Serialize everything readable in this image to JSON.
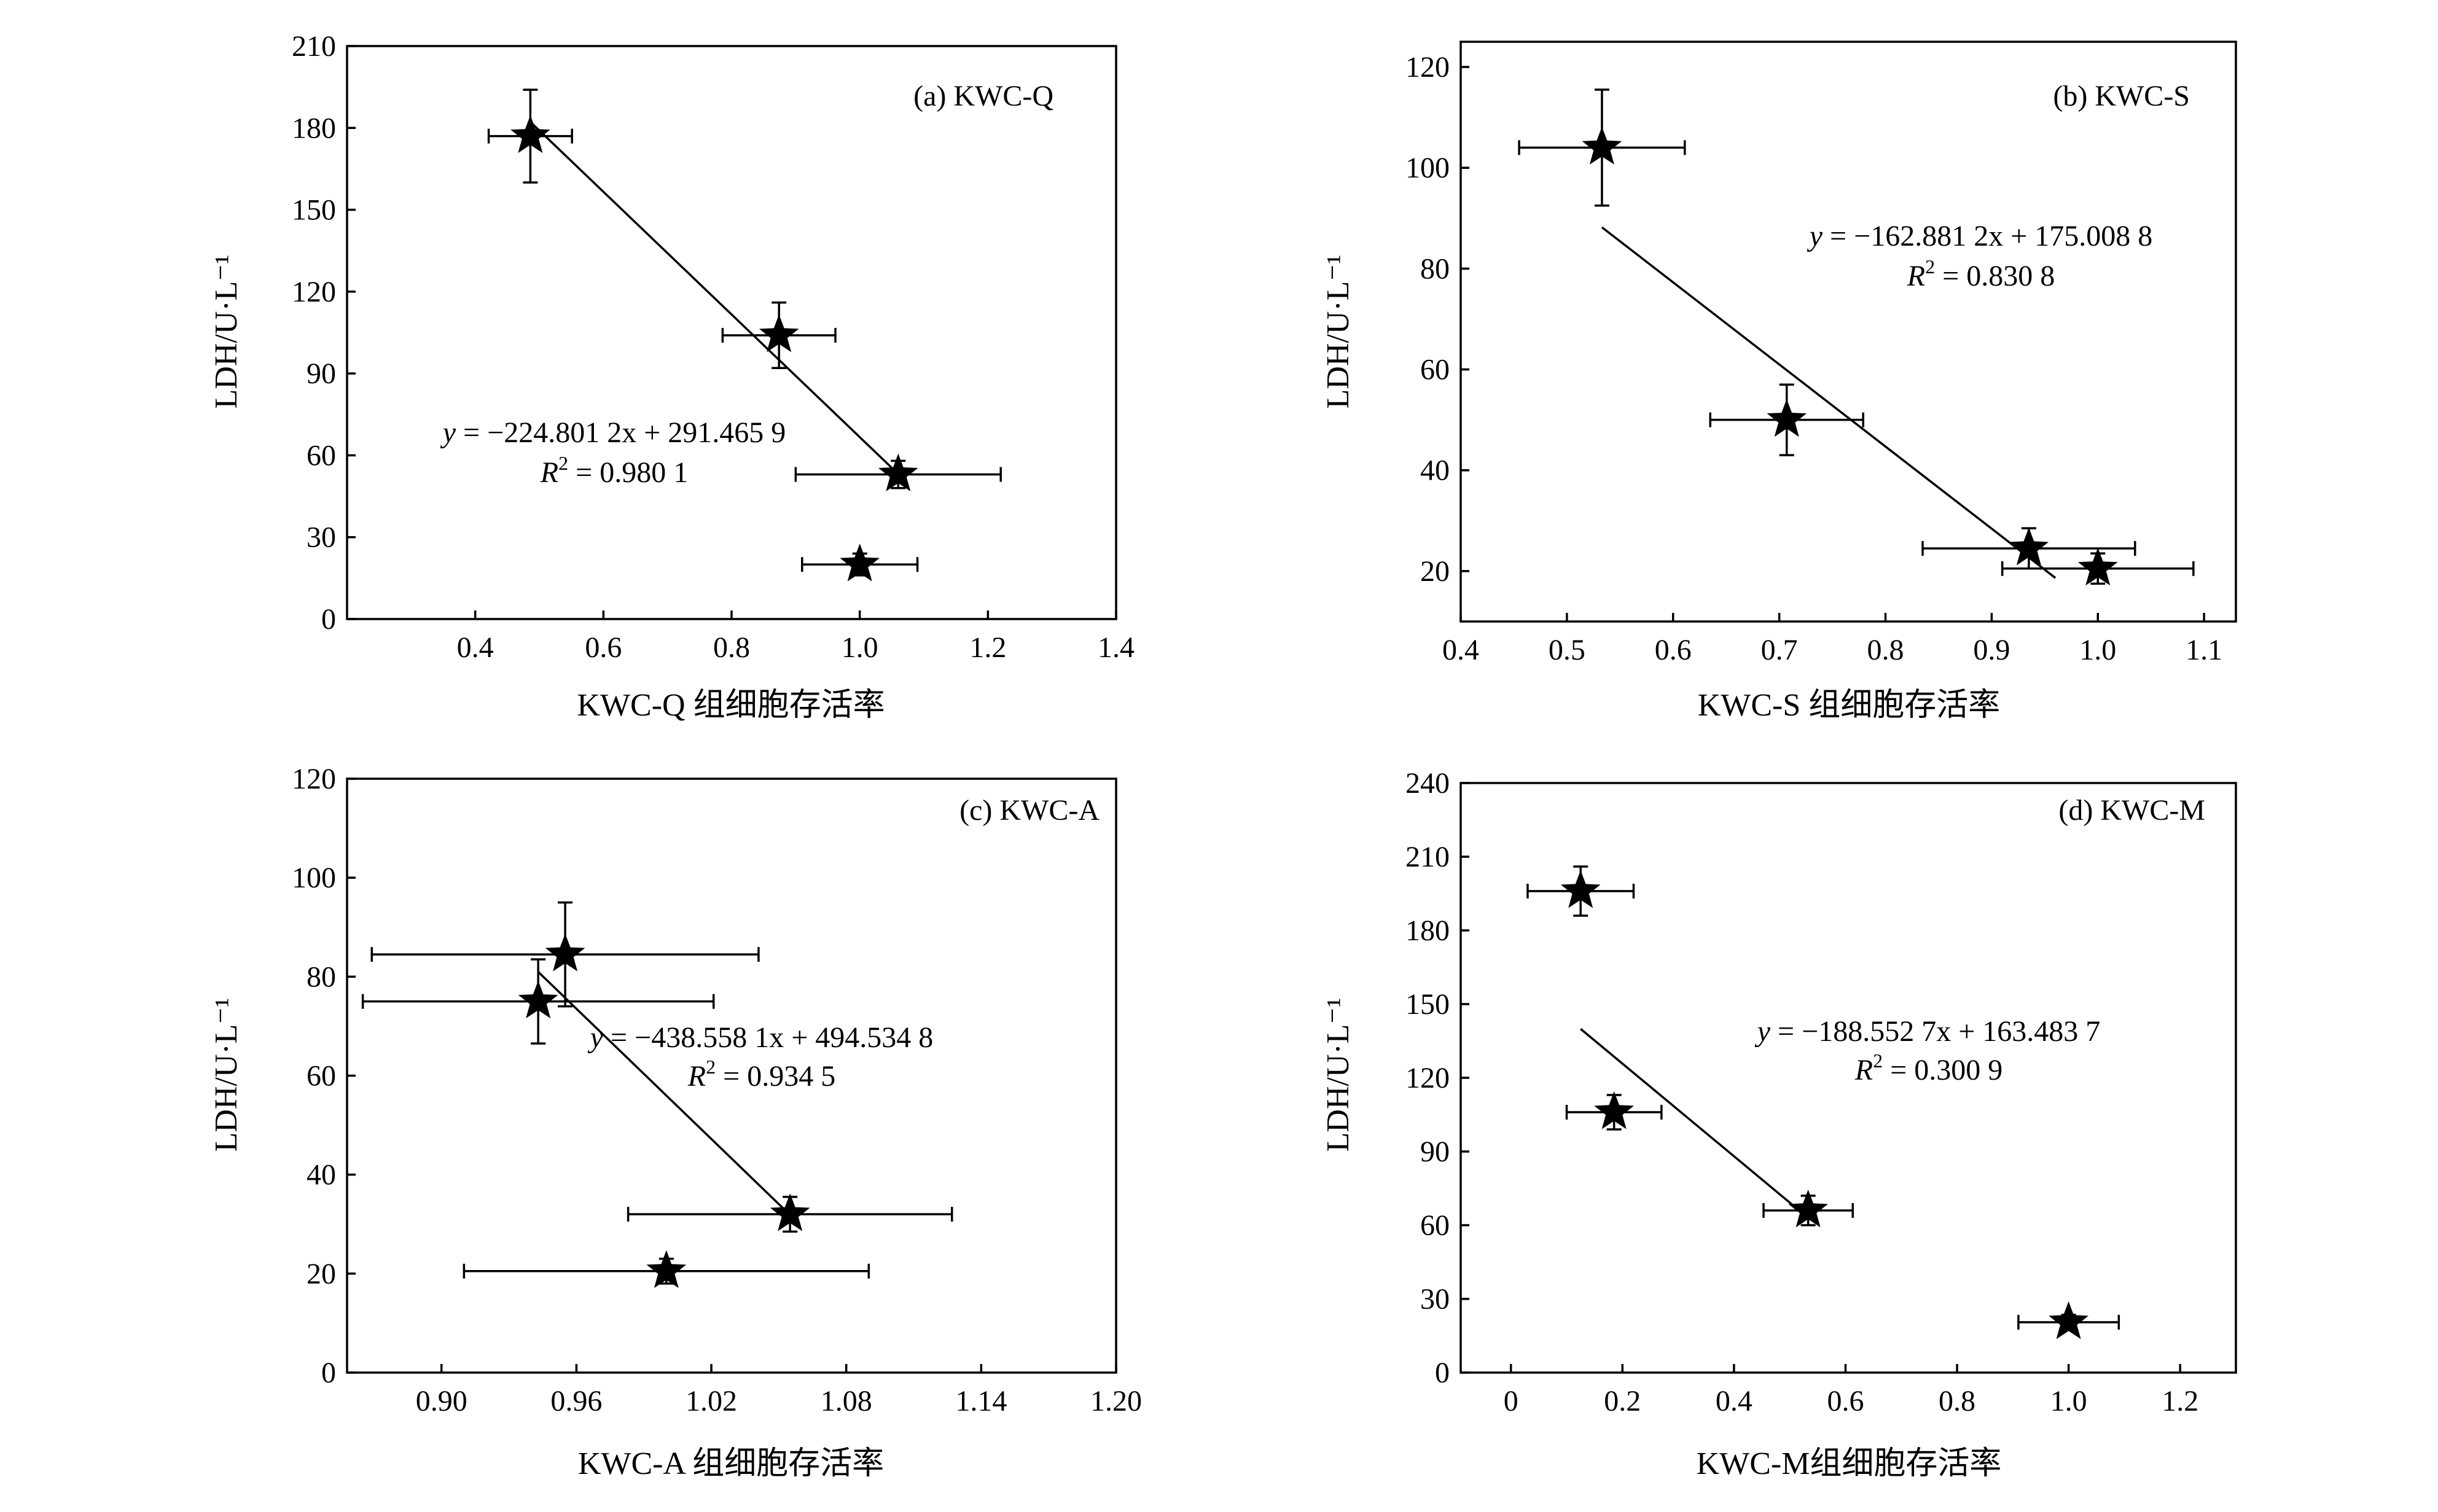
{
  "chart_data": [
    {
      "type": "scatter",
      "panel_label": "(a) KWC-Q",
      "xlabel": "KWC-Q 组细胞存活率",
      "ylabel": "LDH/U·L⁻¹",
      "xlim": [
        0.2,
        1.4
      ],
      "ylim": [
        0,
        210
      ],
      "xticks": [
        0.4,
        0.6,
        0.8,
        1.0,
        1.2,
        1.4
      ],
      "xtick_labels": [
        "0.4",
        "0.6",
        "0.8",
        "1.0",
        "1.2",
        "1.4"
      ],
      "yticks": [
        0,
        30,
        60,
        90,
        120,
        150,
        180,
        210
      ],
      "ytick_labels": [
        "0",
        "30",
        "60",
        "90",
        "120",
        "150",
        "180",
        "210"
      ],
      "points": [
        {
          "x": 0.486,
          "y": 177,
          "xerr": 0.065,
          "yerr": 17
        },
        {
          "x": 0.874,
          "y": 104,
          "xerr": 0.088,
          "yerr": 12
        },
        {
          "x": 1.06,
          "y": 53,
          "xerr": 0.16,
          "yerr": 5
        },
        {
          "x": 1.0,
          "y": 20,
          "xerr": 0.09,
          "yerr": 4
        }
      ],
      "fit": {
        "slope": -224.8012,
        "intercept": 291.4659,
        "x_range": [
          0.486,
          1.06
        ]
      },
      "equation_prefix": "y",
      "equation_rest": " = −224.801 2x + 291.465 9",
      "r2_prefix": "R",
      "r2_rest": " = 0.980 1"
    },
    {
      "type": "scatter",
      "panel_label": "(b) KWC-S",
      "xlabel": "KWC-S 组细胞存活率",
      "ylabel": "LDH/U·L⁻¹",
      "xlim": [
        0.4,
        1.13
      ],
      "ylim": [
        10,
        125
      ],
      "xticks": [
        0.4,
        0.5,
        0.6,
        0.7,
        0.8,
        0.9,
        1.0,
        1.1
      ],
      "xtick_labels": [
        "0.4",
        "0.5",
        "0.6",
        "0.7",
        "0.8",
        "0.9",
        "1.0",
        "1.1"
      ],
      "yticks": [
        20,
        40,
        60,
        80,
        100,
        120
      ],
      "ytick_labels": [
        "20",
        "40",
        "60",
        "80",
        "100",
        "120"
      ],
      "points": [
        {
          "x": 0.533,
          "y": 104,
          "xerr": 0.078,
          "yerr": 11.5
        },
        {
          "x": 0.707,
          "y": 50,
          "xerr": 0.072,
          "yerr": 7
        },
        {
          "x": 0.935,
          "y": 24.5,
          "xerr": 0.1,
          "yerr": 4
        },
        {
          "x": 1.0,
          "y": 20.5,
          "xerr": 0.09,
          "yerr": 3
        }
      ],
      "fit": {
        "slope": -162.8812,
        "intercept": 175.0088,
        "x_range": [
          0.533,
          0.96
        ]
      },
      "equation_prefix": "y",
      "equation_rest": " = −162.881 2x + 175.008 8",
      "r2_prefix": "R",
      "r2_rest": " = 0.830 8"
    },
    {
      "type": "scatter",
      "panel_label": "(c) KWC-A",
      "xlabel": "KWC-A 组细胞存活率",
      "ylabel": "LDH/U·L⁻¹",
      "xlim": [
        0.858,
        1.2
      ],
      "ylim": [
        0,
        120
      ],
      "xticks": [
        0.9,
        0.96,
        1.02,
        1.08,
        1.14,
        1.2
      ],
      "xtick_labels": [
        "0.90",
        "0.96",
        "1.02",
        "1.08",
        "1.14",
        "1.20"
      ],
      "yticks": [
        0,
        20,
        40,
        60,
        80,
        100,
        120
      ],
      "ytick_labels": [
        "0",
        "20",
        "40",
        "60",
        "80",
        "100",
        "120"
      ],
      "points": [
        {
          "x": 0.955,
          "y": 84.5,
          "xerr": 0.086,
          "yerr": 10.5
        },
        {
          "x": 0.943,
          "y": 75,
          "xerr": 0.078,
          "yerr": 8.5
        },
        {
          "x": 1.055,
          "y": 32,
          "xerr": 0.072,
          "yerr": 3.5
        },
        {
          "x": 1.0,
          "y": 20.5,
          "xerr": 0.09,
          "yerr": 2.5
        }
      ],
      "fit": {
        "slope": -438.5581,
        "intercept": 494.5348,
        "x_range": [
          0.943,
          1.055
        ]
      },
      "equation_prefix": "y",
      "equation_rest": " = −438.558 1x + 494.534 8",
      "r2_prefix": "R",
      "r2_rest": " = 0.934 5"
    },
    {
      "type": "scatter",
      "panel_label": "(d) KWC-M",
      "xlabel": "KWC-M组细胞存活率",
      "ylabel": "LDH/U·L⁻¹",
      "xlim": [
        -0.09,
        1.3
      ],
      "ylim": [
        0,
        240
      ],
      "xticks": [
        0,
        0.2,
        0.4,
        0.6,
        0.8,
        1.0,
        1.2
      ],
      "xtick_labels": [
        "0",
        "0.2",
        "0.4",
        "0.6",
        "0.8",
        "1.0",
        "1.2"
      ],
      "yticks": [
        0,
        30,
        60,
        90,
        120,
        150,
        180,
        210,
        240
      ],
      "ytick_labels": [
        "0",
        "30",
        "60",
        "90",
        "120",
        "150",
        "180",
        "210",
        "240"
      ],
      "points": [
        {
          "x": 0.125,
          "y": 196,
          "xerr": 0.095,
          "yerr": 10
        },
        {
          "x": 0.185,
          "y": 106,
          "xerr": 0.085,
          "yerr": 7
        },
        {
          "x": 0.533,
          "y": 66,
          "xerr": 0.08,
          "yerr": 6
        },
        {
          "x": 1.0,
          "y": 20.5,
          "xerr": 0.09,
          "yerr": 3
        }
      ],
      "fit": {
        "slope": -188.5527,
        "intercept": 163.4837,
        "x_range": [
          0.125,
          0.533
        ]
      },
      "equation_prefix": "y",
      "equation_rest": " = −188.552 7x + 163.483 7",
      "r2_prefix": "R",
      "r2_rest": " = 0.300 9"
    }
  ]
}
